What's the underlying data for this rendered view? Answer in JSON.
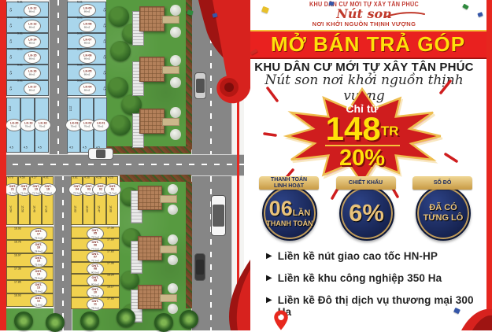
{
  "flyer": {
    "header": {
      "line1": "KHU DÂN CƯ MỚI TỰ XÂY TÂN PHÚC",
      "brand": "Nút son",
      "tagline": "NƠI KHỞI NGUỒN THỊNH VƯỢNG"
    },
    "banner": "MỞ BÁN TRẢ GÓP",
    "subtitle": "KHU DÂN CƯ MỚI TỰ XÂY TÂN PHÚC",
    "slogan": "Nút son nơi khởi nguồn thịnh vượng",
    "starburst": {
      "prefix": "Chỉ từ",
      "amount": "148",
      "unit": "TR",
      "discount": "20%"
    },
    "badges": [
      {
        "ribbon_line1": "THANH TOÁN",
        "ribbon_line2": "LINH HOẠT",
        "value": "06",
        "value_suffix": "LẦN",
        "caption": "THANH TOÁN"
      },
      {
        "ribbon_line1": "CHIẾT KHẤU",
        "value": "6%"
      },
      {
        "ribbon_line1": "SỔ ĐỎ",
        "line1": "ĐÃ CÓ",
        "line2": "TỪNG LÔ"
      }
    ],
    "bullets": [
      "Liền kề nút giao cao tốc HN-HP",
      "Liền kề khu công nghiệp 350 Ha",
      "Liền kề Đô thị dịch vụ thương mại 300 Ha"
    ],
    "colors": {
      "accent_red": "#e9211f",
      "banner_yellow": "#ffe10a",
      "badge_navy": "#1b2a5e",
      "badge_gold": "#e9c27a"
    }
  },
  "siteplan": {
    "colors": {
      "plot_blue": "#a9d6ec",
      "plot_yellow": "#f1d24f",
      "road_gray": "#868686",
      "grass_green": "#579a40"
    },
    "blue_left_rows": [
      {
        "name": "LK-12",
        "area": "60m2"
      },
      {
        "name": "LK-13",
        "area": "60m2"
      },
      {
        "name": "LK-14",
        "area": "60m2"
      },
      {
        "name": "LK-15",
        "area": "60m2"
      },
      {
        "name": "LK-16",
        "area": "60m2"
      },
      {
        "name": "LK-17",
        "area": "60m2"
      }
    ],
    "blue_right_rows": [
      {
        "name": "LK-09",
        "area": "60m2"
      },
      {
        "name": "LK-08",
        "area": "60m2"
      },
      {
        "name": "LK-07",
        "area": "60m2"
      },
      {
        "name": "LK-06",
        "area": "60m2"
      },
      {
        "name": "LK-05",
        "area": "60m2"
      },
      {
        "name": "LK-04",
        "area": "60m2"
      }
    ],
    "blue_left_cols": [
      {
        "name": "LK-20",
        "area": "70m2",
        "w": "4.5"
      },
      {
        "name": "LK-19",
        "area": "70m2",
        "w": "4.5"
      },
      {
        "name": "LK-18",
        "area": "70m2",
        "w": "4.5"
      }
    ],
    "blue_right_cols": [
      {
        "name": "LK-03",
        "area": "70m2",
        "w": "4.5"
      },
      {
        "name": "LK-02",
        "area": "70m2",
        "w": "4.5"
      },
      {
        "name": "LK-01",
        "area": "70m2",
        "w": "4.5"
      }
    ],
    "blue_row_side_dim": "4.5",
    "blue_row_top_dim": "5.61",
    "blue_col_height_dim": "15.5",
    "yellow_left_top": [
      {
        "name": "ONT-21",
        "area": "71.7m2",
        "w": "4.70",
        "h": "14.94"
      },
      {
        "name": "ONT-20",
        "area": "71.6m2",
        "w": "4.50",
        "h": "15.50"
      },
      {
        "name": "ONT-19",
        "area": "71.3m2",
        "w": "4.27",
        "h": "16.40"
      },
      {
        "name": "ONT-18",
        "area": "77.8m2",
        "w": "4.01",
        "h": "17.26"
      }
    ],
    "yellow_right_top": [
      {
        "name": "ONT-04",
        "area": "73.3m2",
        "w": "3.81",
        "h": "15.83"
      },
      {
        "name": "ONT-03",
        "area": "75.7m2",
        "w": "4.36",
        "h": "16.04"
      },
      {
        "name": "ONT-02",
        "area": "80.6m2",
        "w": "4.28",
        "h": "15.47"
      },
      {
        "name": "ONT-01",
        "area": "73.7m2",
        "w": "4.25",
        "h": "16.80"
      }
    ],
    "yellow_left_rows": [
      {
        "name": "ONT-17",
        "area": "75.5m2",
        "d": "16.93"
      },
      {
        "name": "ONT-16",
        "area": "78.8m2",
        "d": "16.76"
      },
      {
        "name": "ONT-15",
        "area": "75.6m2",
        "d": "16.97"
      },
      {
        "name": "ONT-14",
        "area": "75.8m2",
        "d": "17.36"
      },
      {
        "name": "ONT-13",
        "area": "73.8m2",
        "d": "17.85"
      },
      {
        "name": "ONT-12",
        "area": "71.8m2",
        "d": "16.93"
      }
    ],
    "yellow_right_rows": [
      {
        "name": "ONT-05",
        "area": "75.5m2",
        "d": "17.58"
      },
      {
        "name": "ONT-06",
        "area": "77.5m2",
        "d": "17.69"
      },
      {
        "name": "ONT-07",
        "area": "75.3m2",
        "d": "17.83"
      },
      {
        "name": "ONT-08",
        "area": "80.5m2",
        "d": "17.98"
      },
      {
        "name": "ONT-09",
        "area": "80.6m2",
        "d": "18.24"
      },
      {
        "name": "ONT-10",
        "area": "79.9m2",
        "d": "18.17"
      },
      {
        "name": "ONT-11",
        "area": "78.0m2",
        "d": "17.85"
      }
    ]
  }
}
